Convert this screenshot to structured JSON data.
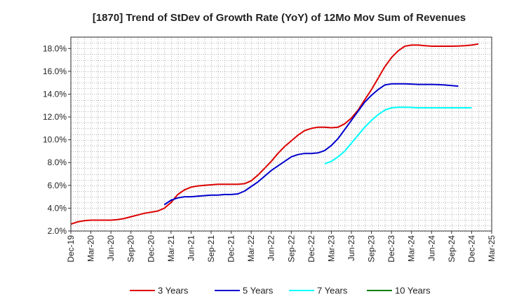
{
  "chart_data": {
    "type": "line",
    "title": "[1870]  Trend of StDev of Growth Rate (YoY) of 12Mo Mov Sum of Revenues",
    "xlabel": "",
    "ylabel": "",
    "ylim": [
      2.0,
      19.0
    ],
    "yticks": [
      2.0,
      4.0,
      6.0,
      8.0,
      10.0,
      12.0,
      14.0,
      16.0,
      18.0
    ],
    "ytick_labels": [
      "2.0%",
      "4.0%",
      "6.0%",
      "8.0%",
      "10.0%",
      "12.0%",
      "14.0%",
      "16.0%",
      "18.0%"
    ],
    "x_range_months": [
      0,
      63
    ],
    "x_ticks": [
      {
        "label": "Dec-19",
        "m": 0
      },
      {
        "label": "Mar-20",
        "m": 3
      },
      {
        "label": "Jun-20",
        "m": 6
      },
      {
        "label": "Sep-20",
        "m": 9
      },
      {
        "label": "Dec-20",
        "m": 12
      },
      {
        "label": "Mar-21",
        "m": 15
      },
      {
        "label": "Jun-21",
        "m": 18
      },
      {
        "label": "Sep-21",
        "m": 21
      },
      {
        "label": "Dec-21",
        "m": 24
      },
      {
        "label": "Mar-22",
        "m": 27
      },
      {
        "label": "Jun-22",
        "m": 30
      },
      {
        "label": "Sep-22",
        "m": 33
      },
      {
        "label": "Dec-22",
        "m": 36
      },
      {
        "label": "Mar-23",
        "m": 39
      },
      {
        "label": "Jun-23",
        "m": 42
      },
      {
        "label": "Sep-23",
        "m": 45
      },
      {
        "label": "Dec-23",
        "m": 48
      },
      {
        "label": "Mar-24",
        "m": 51
      },
      {
        "label": "Jun-24",
        "m": 54
      },
      {
        "label": "Sep-24",
        "m": 57
      },
      {
        "label": "Dec-24",
        "m": 60
      },
      {
        "label": "Mar-25",
        "m": 63
      }
    ],
    "grid": true,
    "legend_position": "bottom",
    "series": [
      {
        "name": "3 Years",
        "color": "#dd0000",
        "start_month": 0,
        "values": [
          2.6,
          2.8,
          2.9,
          2.95,
          2.95,
          2.95,
          2.95,
          3.0,
          3.1,
          3.25,
          3.4,
          3.55,
          3.65,
          3.75,
          4.0,
          4.5,
          5.2,
          5.6,
          5.85,
          5.95,
          6.0,
          6.05,
          6.1,
          6.1,
          6.1,
          6.1,
          6.15,
          6.4,
          6.9,
          7.5,
          8.1,
          8.8,
          9.4,
          9.9,
          10.4,
          10.8,
          11.0,
          11.1,
          11.1,
          11.05,
          11.1,
          11.4,
          11.9,
          12.6,
          13.5,
          14.4,
          15.4,
          16.4,
          17.2,
          17.8,
          18.2,
          18.3,
          18.3,
          18.25,
          18.2,
          18.2,
          18.2,
          18.2,
          18.22,
          18.25,
          18.3,
          18.4
        ]
      },
      {
        "name": "5 Years",
        "color": "#0000cc",
        "start_month": 14,
        "values": [
          4.3,
          4.7,
          4.9,
          5.0,
          5.0,
          5.05,
          5.1,
          5.15,
          5.15,
          5.2,
          5.2,
          5.25,
          5.5,
          5.9,
          6.3,
          6.8,
          7.3,
          7.7,
          8.1,
          8.5,
          8.7,
          8.8,
          8.8,
          8.85,
          9.05,
          9.5,
          10.1,
          10.9,
          11.7,
          12.5,
          13.3,
          13.9,
          14.4,
          14.8,
          14.9,
          14.9,
          14.9,
          14.88,
          14.85,
          14.85,
          14.85,
          14.83,
          14.8,
          14.75,
          14.7
        ]
      },
      {
        "name": "7 Years",
        "color": "#00ffff",
        "start_month": 38,
        "values": [
          7.9,
          8.1,
          8.5,
          9.0,
          9.7,
          10.4,
          11.1,
          11.7,
          12.2,
          12.6,
          12.8,
          12.85,
          12.85,
          12.83,
          12.8,
          12.8,
          12.8,
          12.8,
          12.8,
          12.8,
          12.8,
          12.8,
          12.8
        ]
      },
      {
        "name": "10 Years",
        "color": "#008000",
        "start_month": 0,
        "values": []
      }
    ]
  }
}
